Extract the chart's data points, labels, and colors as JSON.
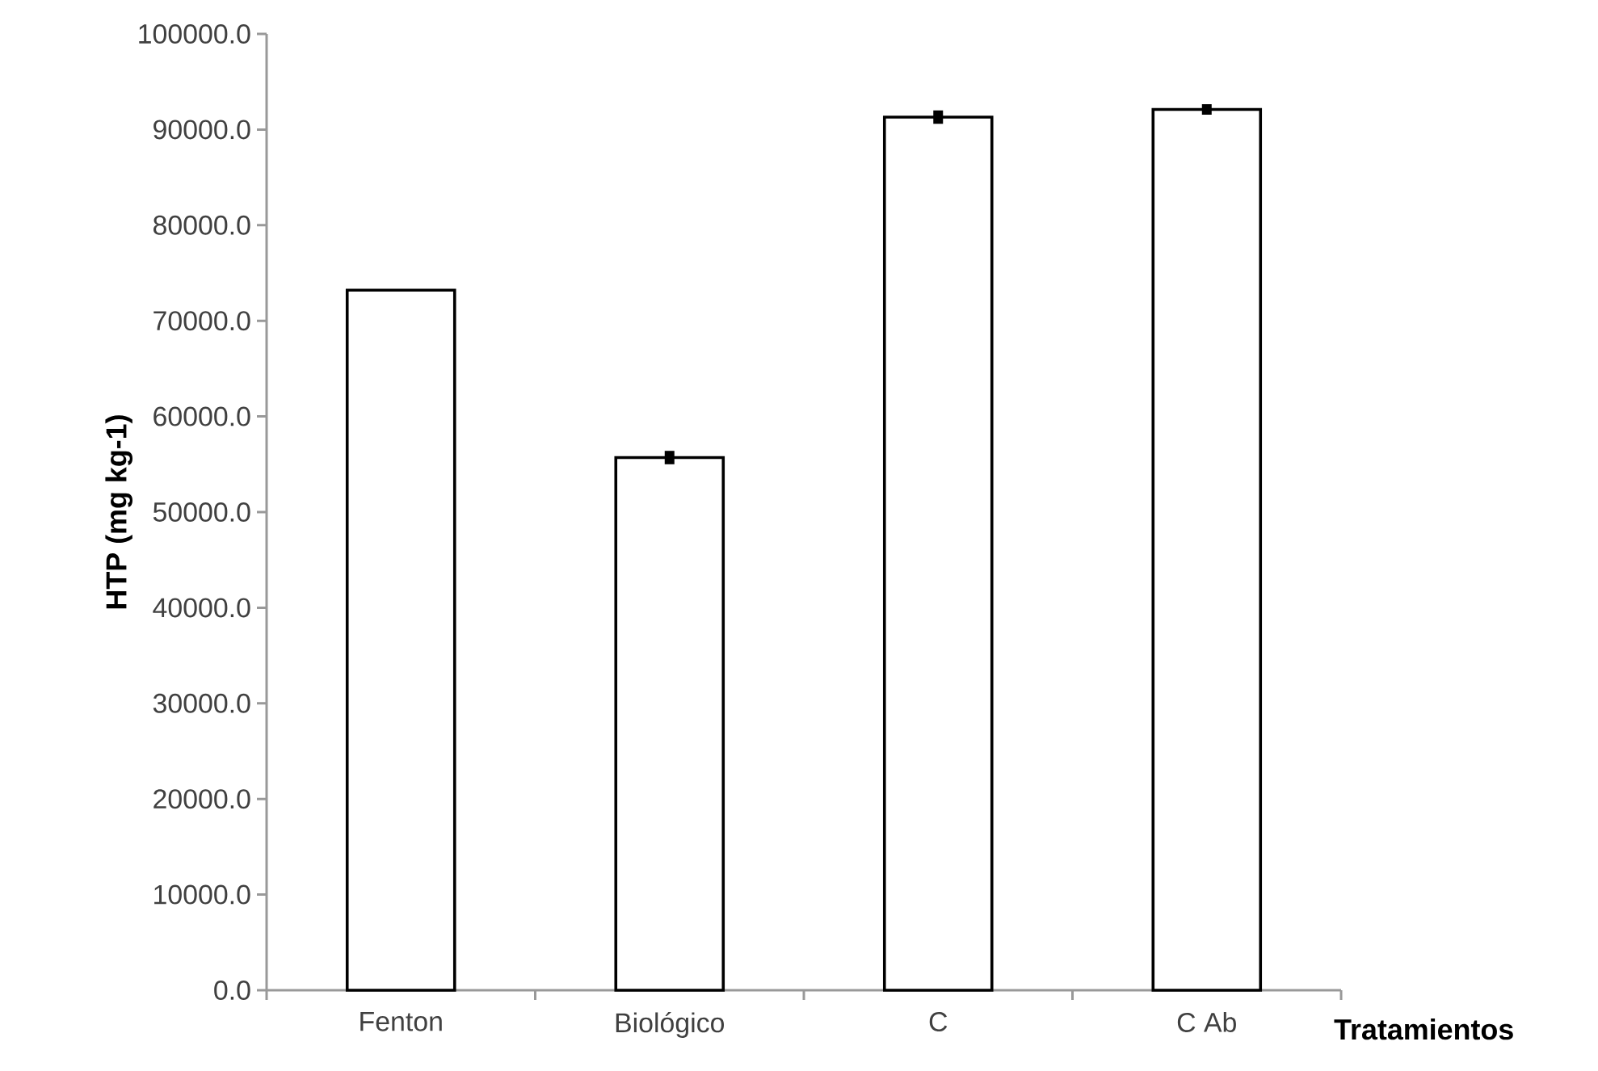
{
  "chart_data": {
    "type": "bar",
    "xlabel": "Tratamientos",
    "ylabel": "HTP (mg kg-1)",
    "categories": [
      "Fenton",
      "Biológico",
      "C",
      "C Ab"
    ],
    "values": [
      73200,
      55700,
      91300,
      92100
    ],
    "errors": [
      null,
      700,
      700,
      550
    ],
    "color": "#ffffff",
    "ylim": [
      0,
      100000
    ],
    "yticks": [
      {
        "value": 0,
        "label": "0.0"
      },
      {
        "value": 10000,
        "label": "10000.0"
      },
      {
        "value": 20000,
        "label": "20000.0"
      },
      {
        "value": 30000,
        "label": "30000.0"
      },
      {
        "value": 40000,
        "label": "40000.0"
      },
      {
        "value": 50000,
        "label": "50000.0"
      },
      {
        "value": 60000,
        "label": "60000.0"
      },
      {
        "value": 70000,
        "label": "70000.0"
      },
      {
        "value": 80000,
        "label": "80000.0"
      },
      {
        "value": 90000,
        "label": "90000.0"
      },
      {
        "value": 100000,
        "label": "100000.0"
      }
    ],
    "grid": false
  }
}
